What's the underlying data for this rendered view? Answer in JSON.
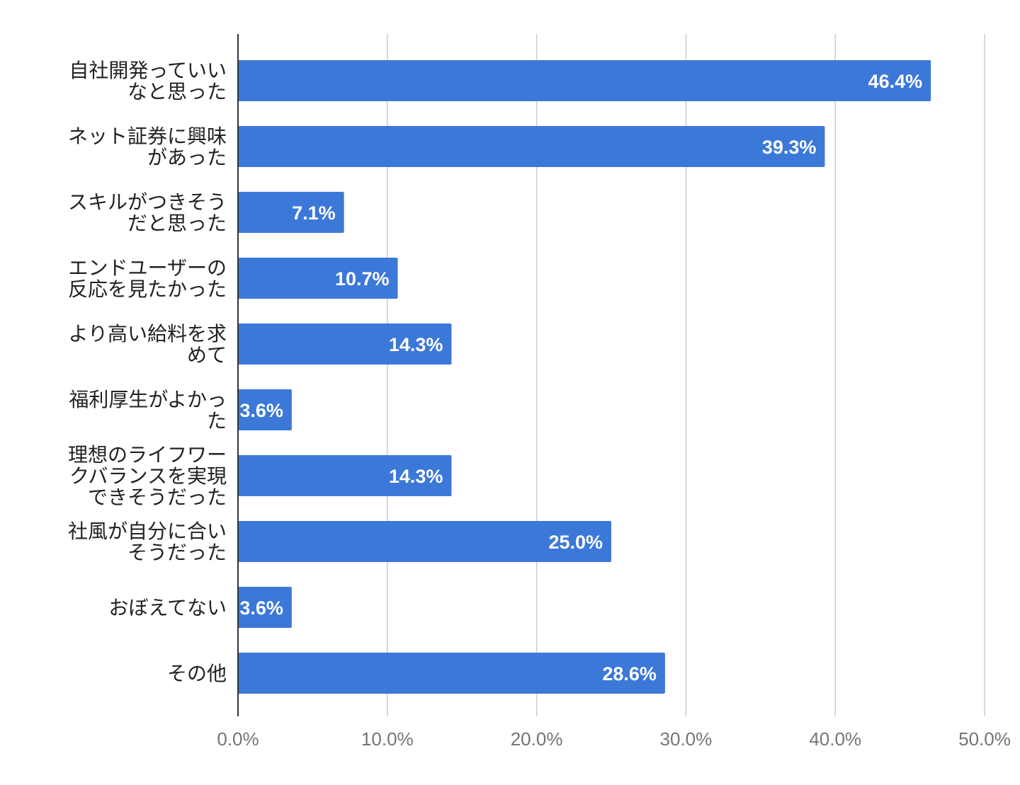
{
  "chart_data": {
    "type": "bar",
    "orientation": "horizontal",
    "categories": [
      [
        "自社開発っていい",
        "なと思った"
      ],
      [
        "ネット証券に興味",
        "があった"
      ],
      [
        "スキルがつきそう",
        "だと思った"
      ],
      [
        "エンドユーザーの",
        "反応を見たかった"
      ],
      [
        "より高い給料を求",
        "めて"
      ],
      [
        "福利厚生がよかっ",
        "た"
      ],
      [
        "理想のライフワー",
        "クバランスを実現",
        "できそうだった"
      ],
      [
        "社風が自分に合い",
        "そうだった"
      ],
      [
        "おぼえてない"
      ],
      [
        "その他"
      ]
    ],
    "values": [
      46.4,
      39.3,
      7.1,
      10.7,
      14.3,
      3.6,
      14.3,
      25.0,
      3.6,
      28.6
    ],
    "data_labels": [
      "46.4%",
      "39.3%",
      "7.1%",
      "10.7%",
      "14.3%",
      "3.6%",
      "14.3%",
      "25.0%",
      "3.6%",
      "28.6%"
    ],
    "xlim": [
      0,
      50
    ],
    "x_ticks": [
      0,
      10,
      20,
      30,
      40,
      50
    ],
    "x_tick_labels": [
      "0.0%",
      "10.0%",
      "20.0%",
      "30.0%",
      "40.0%",
      "50.0%"
    ],
    "grid": true,
    "legend": "none",
    "colors": {
      "bar": "#3c78d8",
      "grid": "#cccccc",
      "axis": "#333333"
    }
  }
}
